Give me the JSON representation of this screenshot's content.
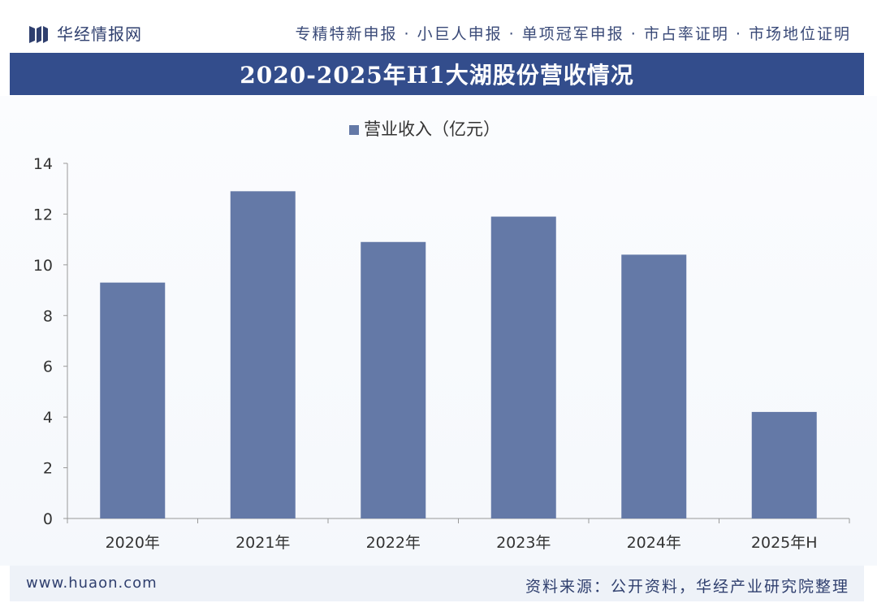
{
  "header": {
    "logo_text": "华经情报网",
    "services": "专精特新申报 · 小巨人申报 · 单项冠军申报 · 市占率证明 · 市场地位证明"
  },
  "colors": {
    "brand": "#334d8c",
    "bar": "#6479a7",
    "axis": "#999999"
  },
  "chart_data": {
    "type": "bar",
    "title": "2020-2025年H1大湖股份营收情况",
    "categories": [
      "2020年",
      "2021年",
      "2022年",
      "2023年",
      "2024年",
      "2025年H"
    ],
    "series": [
      {
        "name": "营业收入（亿元）",
        "values": [
          9.3,
          12.9,
          10.9,
          11.9,
          10.4,
          4.2
        ]
      }
    ],
    "ylim": [
      0,
      14
    ],
    "yticks": [
      0,
      2,
      4,
      6,
      8,
      10,
      12,
      14
    ],
    "ytick_labels": [
      "0",
      "2",
      "4",
      "6",
      "8",
      "10",
      "12",
      "14"
    ],
    "xlabel": "",
    "ylabel": "",
    "legend": "top-center",
    "grid": false
  },
  "footer": {
    "website": "www.huaon.com",
    "source": "资料来源：公开资料，华经产业研究院整理"
  }
}
